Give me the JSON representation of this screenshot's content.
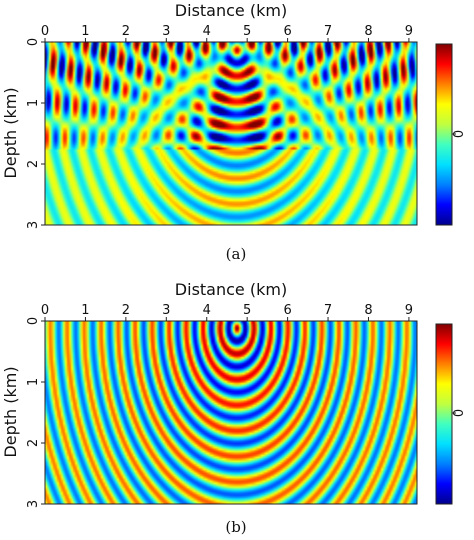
{
  "chart_data": [
    {
      "type": "heatmap",
      "panel_label": "(a)",
      "xlabel": "Distance (km)",
      "ylabel": "Depth (km)",
      "xlim": [
        0,
        9.2
      ],
      "ylim": [
        0,
        3
      ],
      "x_ticks": [
        0,
        1,
        2,
        3,
        4,
        5,
        6,
        7,
        8,
        9
      ],
      "x_tick_labels": [
        "0",
        "1",
        "2",
        "3",
        "4",
        "5",
        "6",
        "7",
        "8",
        "9"
      ],
      "y_ticks": [
        0,
        1,
        2,
        3
      ],
      "y_tick_labels": [
        "0",
        "1",
        "2",
        "3"
      ],
      "y_axis_inverted": true,
      "x_axis_position": "top",
      "source_location": {
        "x": 4.75,
        "depth": 0.12
      },
      "colorbar": {
        "position": "right",
        "tick_label": "0",
        "colormap": "jet"
      },
      "grid": false
    },
    {
      "type": "heatmap",
      "panel_label": "(b)",
      "xlabel": "Distance (km)",
      "ylabel": "Depth (km)",
      "xlim": [
        0,
        9.2
      ],
      "ylim": [
        0,
        3
      ],
      "x_ticks": [
        0,
        1,
        2,
        3,
        4,
        5,
        6,
        7,
        8,
        9
      ],
      "x_tick_labels": [
        "0",
        "1",
        "2",
        "3",
        "4",
        "5",
        "6",
        "7",
        "8",
        "9"
      ],
      "y_ticks": [
        0,
        1,
        2,
        3
      ],
      "y_tick_labels": [
        "0",
        "1",
        "2",
        "3"
      ],
      "y_axis_inverted": true,
      "x_axis_position": "top",
      "source_location": {
        "x": 4.75,
        "depth": 0.12
      },
      "colorbar": {
        "position": "right",
        "tick_label": "0",
        "colormap": "jet"
      },
      "grid": false
    }
  ],
  "colors": {
    "jet": [
      "#00008f",
      "#0000ff",
      "#0080ff",
      "#00e0ff",
      "#40ffc0",
      "#c0ff40",
      "#ffff00",
      "#ff8000",
      "#ff0000",
      "#800000"
    ]
  }
}
